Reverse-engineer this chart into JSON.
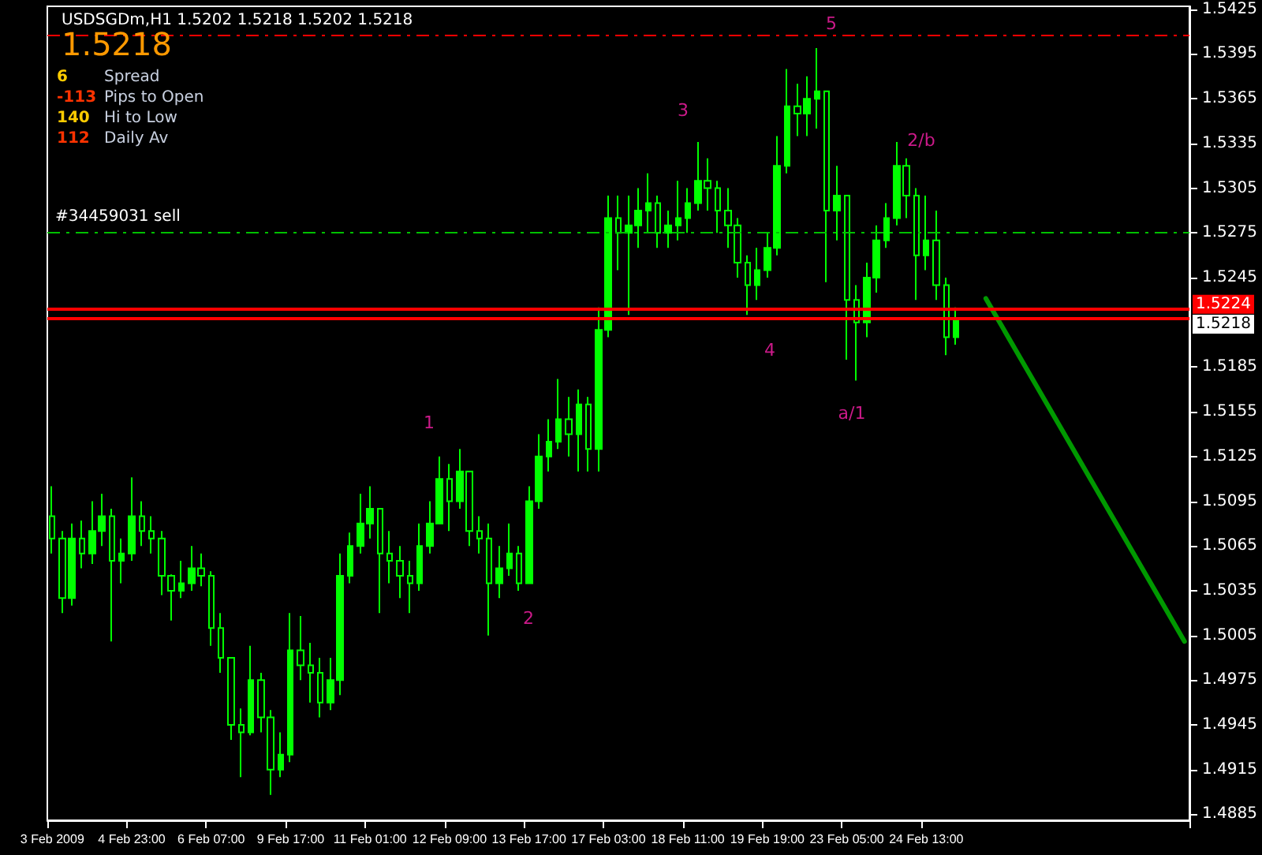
{
  "chart_data": {
    "type": "candlestick",
    "title": "USDSGDm,H1 1.5202 1.5218 1.5202 1.5218",
    "subtitle": "1.5218",
    "categories": [
      "3 Feb 2009",
      null,
      null,
      null,
      null,
      null,
      null,
      null,
      "4 Feb 23:00",
      null,
      null,
      null,
      null,
      null,
      null,
      null,
      "6 Feb 07:00",
      null,
      null,
      null,
      null,
      null,
      null,
      null,
      "9 Feb 17:00",
      null,
      null,
      null,
      null,
      null,
      null,
      null,
      "11 Feb 01:00",
      null,
      null,
      null,
      null,
      null,
      null,
      null,
      "12 Feb 09:00",
      null,
      null,
      null,
      null,
      null,
      null,
      null,
      "13 Feb 17:00",
      null,
      null,
      null,
      null,
      null,
      null,
      null,
      "17 Feb 03:00",
      null,
      null,
      null,
      null,
      null,
      null,
      null,
      "18 Feb 11:00",
      null,
      null,
      null,
      null,
      null,
      null,
      null,
      "19 Feb 19:00",
      null,
      null,
      null,
      null,
      null,
      null,
      null,
      "23 Feb 05:00",
      null,
      null,
      null,
      null,
      null,
      null,
      null,
      "24 Feb 13:00",
      null,
      null,
      null,
      null,
      null,
      null,
      null,
      null,
      null,
      null,
      null,
      null,
      null,
      null,
      null,
      null,
      null,
      null,
      null,
      null,
      null,
      null,
      null,
      null,
      null,
      null
    ],
    "series": [
      {
        "color": "#00ff00",
        "ohlc": [
          [
            1.5085,
            1.5105,
            1.506,
            1.507
          ],
          [
            1.507,
            1.5075,
            1.502,
            1.503
          ],
          [
            1.503,
            1.508,
            1.5025,
            1.507
          ],
          [
            1.507,
            1.5082,
            1.505,
            1.506
          ],
          [
            1.506,
            1.5095,
            1.5053,
            1.5075
          ],
          [
            1.5075,
            1.51,
            1.5065,
            1.5085
          ],
          [
            1.5085,
            1.509,
            1.5001,
            1.5055
          ],
          [
            1.5055,
            1.507,
            1.504,
            1.506
          ],
          [
            1.506,
            1.5111,
            1.5055,
            1.5085
          ],
          [
            1.5085,
            1.5095,
            1.5065,
            1.5075
          ],
          [
            1.5075,
            1.5085,
            1.506,
            1.507
          ],
          [
            1.507,
            1.5075,
            1.5032,
            1.5045
          ],
          [
            1.5045,
            1.5046,
            1.5015,
            1.5035
          ],
          [
            1.5035,
            1.5055,
            1.503,
            1.504
          ],
          [
            1.504,
            1.5065,
            1.5035,
            1.505
          ],
          [
            1.505,
            1.506,
            1.5038,
            1.5045
          ],
          [
            1.5045,
            1.5048,
            1.4998,
            1.501
          ],
          [
            1.501,
            1.502,
            1.498,
            1.499
          ],
          [
            1.499,
            1.499,
            1.4935,
            1.4945
          ],
          [
            1.4945,
            1.4956,
            1.491,
            1.494
          ],
          [
            1.494,
            1.4998,
            1.4938,
            1.4975
          ],
          [
            1.4975,
            1.498,
            1.494,
            1.495
          ],
          [
            1.495,
            1.4955,
            1.4898,
            1.4915
          ],
          [
            1.4915,
            1.494,
            1.491,
            1.4925
          ],
          [
            1.4925,
            1.502,
            1.492,
            1.4995
          ],
          [
            1.4995,
            1.5018,
            1.4975,
            1.4985
          ],
          [
            1.4985,
            1.5,
            1.496,
            1.498
          ],
          [
            1.498,
            1.499,
            1.495,
            1.496
          ],
          [
            1.496,
            1.499,
            1.4955,
            1.4975
          ],
          [
            1.4975,
            1.506,
            1.4965,
            1.5045
          ],
          [
            1.5045,
            1.5074,
            1.504,
            1.5065
          ],
          [
            1.5065,
            1.51,
            1.506,
            1.508
          ],
          [
            1.508,
            1.5105,
            1.507,
            1.509
          ],
          [
            1.509,
            1.509,
            1.502,
            1.506
          ],
          [
            1.506,
            1.5075,
            1.504,
            1.5055
          ],
          [
            1.5055,
            1.5065,
            1.503,
            1.5045
          ],
          [
            1.5045,
            1.5055,
            1.502,
            1.504
          ],
          [
            1.504,
            1.508,
            1.5035,
            1.5065
          ],
          [
            1.5065,
            1.5095,
            1.506,
            1.508
          ],
          [
            1.508,
            1.5125,
            1.508,
            1.511
          ],
          [
            1.511,
            1.512,
            1.5075,
            1.5095
          ],
          [
            1.5095,
            1.513,
            1.509,
            1.5115
          ],
          [
            1.5115,
            1.5115,
            1.5065,
            1.5075
          ],
          [
            1.5075,
            1.5085,
            1.506,
            1.507
          ],
          [
            1.507,
            1.508,
            1.5005,
            1.504
          ],
          [
            1.504,
            1.5065,
            1.503,
            1.505
          ],
          [
            1.505,
            1.508,
            1.5045,
            1.506
          ],
          [
            1.506,
            1.5065,
            1.5035,
            1.504
          ],
          [
            1.504,
            1.5105,
            1.504,
            1.5095
          ],
          [
            1.5095,
            1.514,
            1.509,
            1.5125
          ],
          [
            1.5125,
            1.515,
            1.5115,
            1.5135
          ],
          [
            1.5135,
            1.5177,
            1.513,
            1.515
          ],
          [
            1.515,
            1.5165,
            1.5125,
            1.514
          ],
          [
            1.514,
            1.517,
            1.5115,
            1.516
          ],
          [
            1.516,
            1.5165,
            1.5115,
            1.513
          ],
          [
            1.513,
            1.5225,
            1.5115,
            1.521
          ],
          [
            1.521,
            1.53,
            1.5205,
            1.5285
          ],
          [
            1.5285,
            1.53,
            1.525,
            1.5275
          ],
          [
            1.5275,
            1.53,
            1.522,
            1.528
          ],
          [
            1.528,
            1.5305,
            1.5265,
            1.529
          ],
          [
            1.529,
            1.5315,
            1.5275,
            1.5295
          ],
          [
            1.5295,
            1.53,
            1.5265,
            1.5275
          ],
          [
            1.5275,
            1.529,
            1.5265,
            1.528
          ],
          [
            1.528,
            1.531,
            1.527,
            1.5285
          ],
          [
            1.5285,
            1.5305,
            1.5275,
            1.5295
          ],
          [
            1.5295,
            1.5336,
            1.529,
            1.531
          ],
          [
            1.531,
            1.5325,
            1.529,
            1.5305
          ],
          [
            1.5305,
            1.531,
            1.5275,
            1.529
          ],
          [
            1.529,
            1.5305,
            1.5265,
            1.528
          ],
          [
            1.528,
            1.5285,
            1.5245,
            1.5255
          ],
          [
            1.5255,
            1.526,
            1.522,
            1.524
          ],
          [
            1.524,
            1.5265,
            1.523,
            1.525
          ],
          [
            1.525,
            1.5275,
            1.5245,
            1.5265
          ],
          [
            1.5265,
            1.534,
            1.526,
            1.532
          ],
          [
            1.532,
            1.5385,
            1.5315,
            1.536
          ],
          [
            1.536,
            1.5375,
            1.534,
            1.5355
          ],
          [
            1.5355,
            1.538,
            1.534,
            1.5365
          ],
          [
            1.5365,
            1.5399,
            1.5345,
            1.537
          ],
          [
            1.537,
            1.537,
            1.5242,
            1.529
          ],
          [
            1.529,
            1.532,
            1.527,
            1.53
          ],
          [
            1.53,
            1.53,
            1.519,
            1.523
          ],
          [
            1.523,
            1.524,
            1.5176,
            1.5215
          ],
          [
            1.5215,
            1.5255,
            1.5205,
            1.5245
          ],
          [
            1.5245,
            1.528,
            1.5235,
            1.527
          ],
          [
            1.527,
            1.5295,
            1.5265,
            1.5285
          ],
          [
            1.5285,
            1.5336,
            1.528,
            1.532
          ],
          [
            1.532,
            1.5325,
            1.5285,
            1.53
          ],
          [
            1.53,
            1.5305,
            1.523,
            1.526
          ],
          [
            1.526,
            1.53,
            1.525,
            1.527
          ],
          [
            1.527,
            1.529,
            1.523,
            1.524
          ],
          [
            1.524,
            1.5245,
            1.5193,
            1.5205
          ],
          [
            1.5205,
            1.5225,
            1.52,
            1.5218
          ],
          null,
          null,
          null,
          null,
          null,
          null,
          null,
          null,
          null,
          null,
          null,
          null,
          null,
          null,
          null,
          null,
          null,
          null,
          null,
          null,
          null,
          null,
          null
        ]
      },
      {
        "type": "line",
        "color": "#009900",
        "values": [
          null,
          null,
          null,
          null,
          null,
          null,
          null,
          null,
          null,
          null,
          null,
          null,
          null,
          null,
          null,
          null,
          null,
          null,
          null,
          null,
          null,
          null,
          null,
          null,
          null,
          null,
          null,
          null,
          null,
          null,
          null,
          null,
          null,
          null,
          null,
          null,
          null,
          null,
          null,
          null,
          null,
          null,
          null,
          null,
          null,
          null,
          null,
          null,
          null,
          null,
          null,
          null,
          null,
          null,
          null,
          null,
          null,
          null,
          null,
          null,
          null,
          null,
          null,
          null,
          null,
          null,
          null,
          null,
          null,
          null,
          null,
          null,
          null,
          null,
          null,
          null,
          null,
          null,
          null,
          null,
          null,
          null,
          null,
          null,
          null,
          null,
          null,
          null,
          null,
          null,
          null,
          null,
          null,
          null,
          1.5231,
          null,
          null,
          null,
          null,
          null,
          null,
          null,
          null,
          null,
          null,
          null,
          null,
          null,
          null,
          null,
          null,
          null,
          null,
          null,
          1.5001
        ]
      }
    ],
    "ylim": [
      1.4881,
      1.5427
    ],
    "yticks": [
      1.4885,
      1.4915,
      1.4945,
      1.4975,
      1.5005,
      1.5035,
      1.5065,
      1.5095,
      1.5125,
      1.5155,
      1.5185,
      1.5245,
      1.5275,
      1.5305,
      1.5335,
      1.5365,
      1.5395,
      1.5425
    ],
    "grid": false,
    "ref_lines": [
      {
        "axis": "y",
        "value": 1.5224,
        "label": "1.5224",
        "color": "#ff0000"
      },
      {
        "axis": "y",
        "value": 1.5218,
        "label": "1.5218",
        "color": "#ff0000"
      },
      {
        "axis": "y",
        "value": 1.5275,
        "label": "#34459031 sell",
        "color": "#00c000",
        "line_style": "dashed"
      },
      {
        "axis": "y",
        "value": 1.5408,
        "color": "#ff0000",
        "line_style": "dashed"
      }
    ],
    "annotations": [
      "6 Spread",
      "-113 Pips to Open",
      "140 Hi to Low",
      "112 Daily Av",
      "1",
      "2",
      "3",
      "4",
      "5",
      "a/1",
      "2/b"
    ]
  }
}
